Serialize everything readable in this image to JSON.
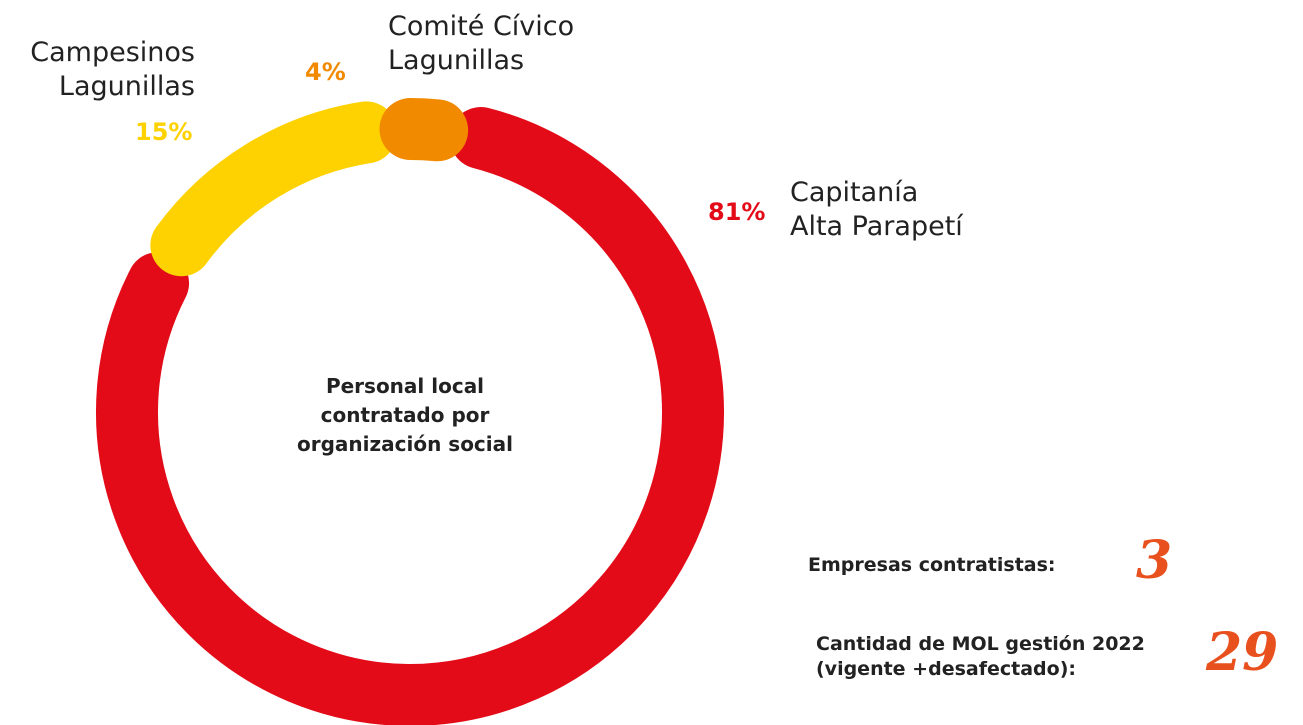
{
  "chart_data": {
    "type": "donut",
    "center_text": "Personal local\ncontratado por\norganización social",
    "categories": [
      "Capitanía\nAlta Parapetí",
      "Campesinos\nLagunillas",
      "Comité Cívico\nLagunillas"
    ],
    "values": [
      81,
      15,
      4
    ],
    "value_labels": [
      "81%",
      "15%",
      "4%"
    ],
    "colors": [
      "#e30b17",
      "#fdd200",
      "#f28a00"
    ],
    "stats": [
      {
        "label": "Empresas contratistas:",
        "value": 3
      },
      {
        "label": "Cantidad de MOL gestión 2022\n(vigente +desafectado):",
        "value": 29
      }
    ]
  }
}
